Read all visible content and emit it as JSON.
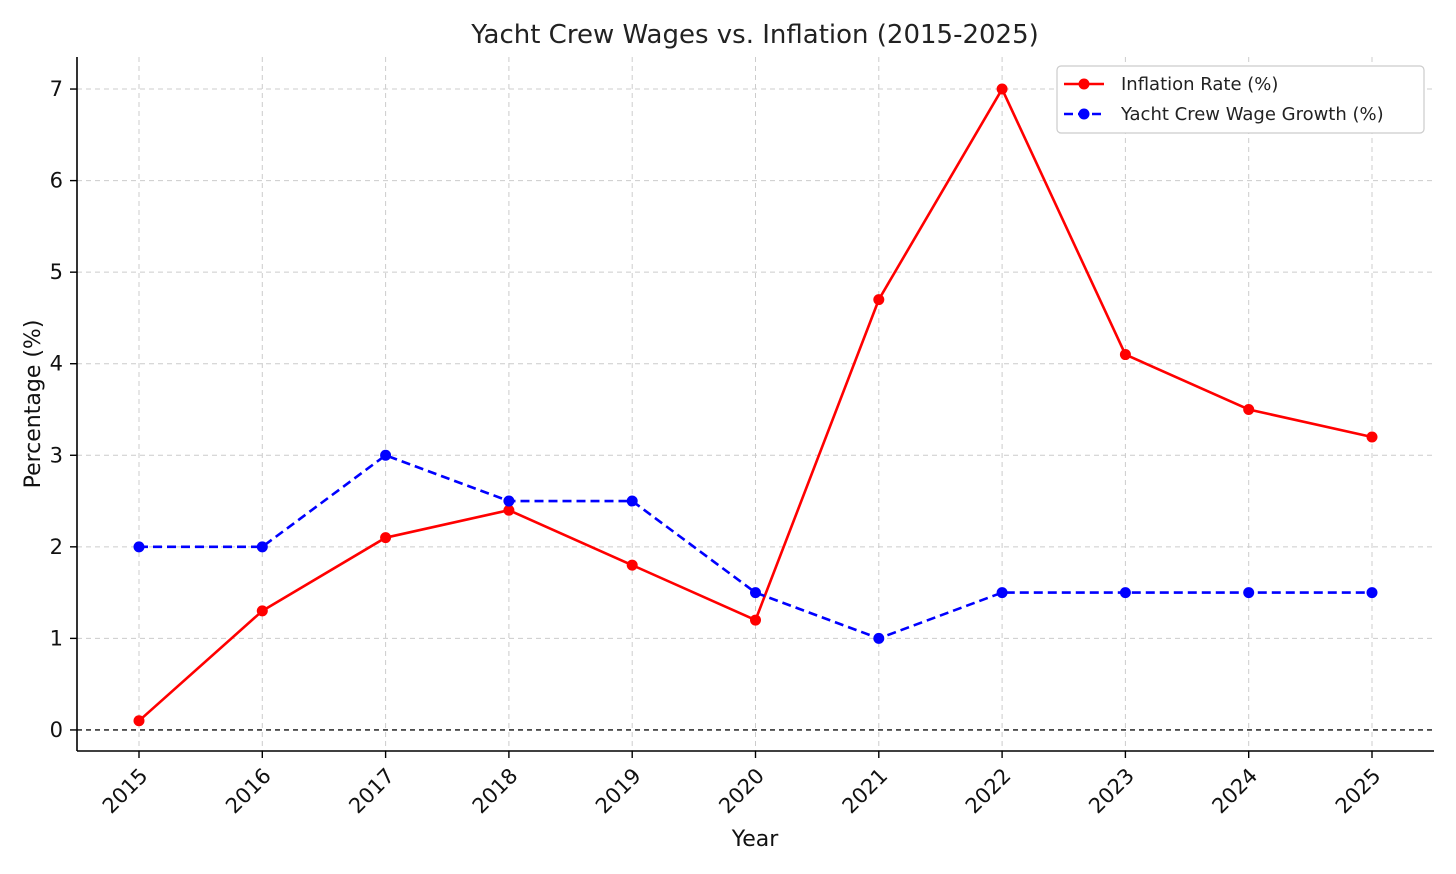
{
  "chart_data": {
    "type": "line",
    "title": "Yacht Crew Wages vs. Inflation (2015-2025)",
    "xlabel": "Year",
    "ylabel": "Percentage (%)",
    "x": [
      "2015",
      "2016",
      "2017",
      "2018",
      "2019",
      "2020",
      "2021",
      "2022",
      "2023",
      "2024",
      "2025"
    ],
    "yticks": [
      "0",
      "1",
      "2",
      "3",
      "4",
      "5",
      "6",
      "7"
    ],
    "ylim": [
      -0.23,
      7.35
    ],
    "grid": true,
    "legend_position": "top-right",
    "reference_line_y": 0,
    "series": [
      {
        "name": "Inflation Rate (%)",
        "color": "#ff0000",
        "style": "solid",
        "values": [
          0.1,
          1.3,
          2.1,
          2.4,
          1.8,
          1.2,
          4.7,
          7.0,
          4.1,
          3.5,
          3.2
        ]
      },
      {
        "name": "Yacht Crew Wage Growth (%)",
        "color": "#0000ff",
        "style": "dashed",
        "values": [
          2.0,
          2.0,
          3.0,
          2.5,
          2.5,
          1.5,
          1.0,
          1.5,
          1.5,
          1.5,
          1.5
        ]
      }
    ]
  }
}
